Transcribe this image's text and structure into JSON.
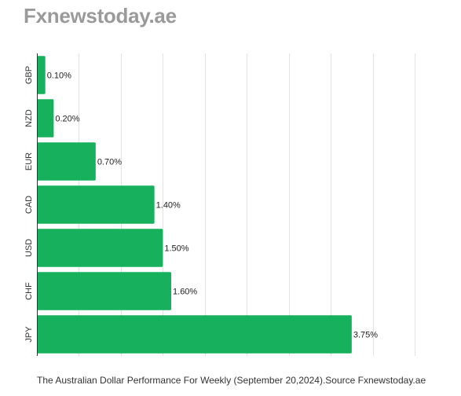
{
  "brand": "Fxnewstoday.ae",
  "caption": "The Australian Dollar Performance For Weekly (September 20,2024).Source Fxnewstoday.ae",
  "colors": {
    "bar": "#17b05d",
    "grid": "#e3e3e3",
    "axis": "#333333",
    "brand": "#9a9a9a"
  },
  "chart_data": {
    "type": "bar",
    "orientation": "horizontal",
    "categories": [
      "GBP",
      "NZD",
      "EUR",
      "CAD",
      "USD",
      "CHF",
      "JPY"
    ],
    "values": [
      0.1,
      0.2,
      0.7,
      1.4,
      1.5,
      1.6,
      3.75
    ],
    "data_labels": [
      "0.10%",
      "0.20%",
      "0.70%",
      "1.40%",
      "1.50%",
      "1.60%",
      "3.75%"
    ],
    "xlim": [
      0,
      4.5
    ],
    "grid": true,
    "title": "",
    "xlabel": "",
    "ylabel": ""
  }
}
